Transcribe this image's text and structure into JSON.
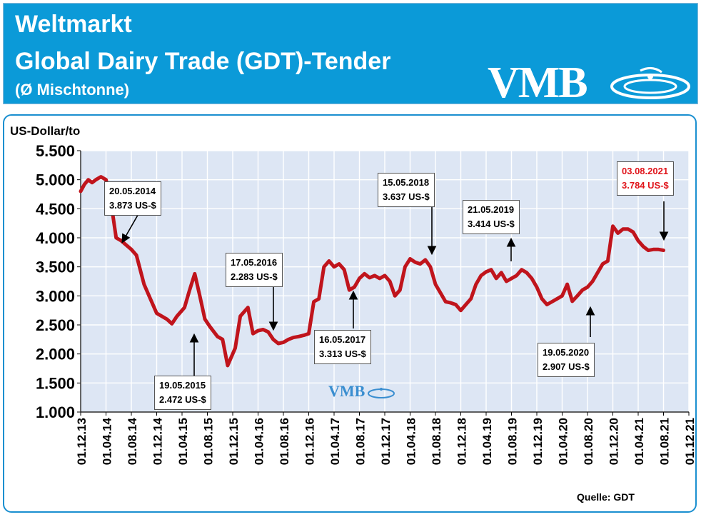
{
  "header": {
    "line1": "Weltmarkt",
    "line2": "Global Dairy Trade (GDT)-Tender",
    "line3": "(Ø Mischtonne)",
    "logo_text": "VMB",
    "bg_color": "#0b9ad8"
  },
  "chart_data": {
    "type": "line",
    "ylabel": "US-Dollar/to",
    "source": "Quelle: GDT",
    "watermark": "VMB",
    "line_color": "#c0141c",
    "plot_bg": "#dde6f4",
    "grid": true,
    "ylim": [
      1000,
      5500
    ],
    "yticks": [
      1000,
      1500,
      2000,
      2500,
      3000,
      3500,
      4000,
      4500,
      5000,
      5500
    ],
    "ytick_labels": [
      "1.000",
      "1.500",
      "2.000",
      "2.500",
      "3.000",
      "3.500",
      "4.000",
      "4.500",
      "5.000",
      "5.500"
    ],
    "xtick_labels": [
      "01.12.13",
      "01.04.14",
      "01.08.14",
      "01.12.14",
      "01.04.15",
      "01.08.15",
      "01.12.15",
      "01.04.16",
      "01.08.16",
      "01.12.16",
      "01.04.17",
      "01.08.17",
      "01.12.17",
      "01.04.18",
      "01.08.18",
      "01.12.18",
      "01.04.19",
      "01.08.19",
      "01.12.19",
      "01.04.20",
      "01.08.20",
      "01.12.20",
      "01.04.21",
      "01.08.21",
      "01.12.21"
    ],
    "series": [
      {
        "x": [
          0,
          0.15,
          0.3,
          0.45,
          0.6,
          0.8,
          1.0,
          1.2,
          1.4,
          1.6,
          1.8,
          2.0,
          2.2,
          2.5,
          2.8,
          3.0,
          3.2,
          3.4,
          3.6,
          3.8,
          4.0,
          4.1,
          4.3,
          4.5,
          4.7,
          4.9,
          5.1,
          5.4,
          5.6,
          5.8,
          6.1,
          6.3,
          6.6,
          6.8,
          7.0,
          7.2,
          7.4,
          7.6,
          7.8,
          8.0,
          8.2,
          8.4,
          8.6,
          8.8,
          9.0,
          9.2,
          9.4,
          9.6,
          9.8,
          10.0,
          10.2,
          10.4,
          10.6,
          10.8,
          11.0,
          11.2,
          11.4,
          11.6,
          11.8,
          12.0,
          12.2,
          12.4,
          12.6,
          12.8,
          13.0,
          13.2,
          13.4,
          13.6,
          13.8,
          14.0,
          14.2,
          14.4,
          14.6,
          14.8,
          15.0,
          15.2,
          15.4,
          15.6,
          15.8,
          16.0,
          16.2,
          16.4,
          16.6,
          16.8,
          17.0,
          17.2,
          17.4,
          17.6,
          17.8,
          18.0,
          18.2,
          18.4,
          18.6,
          18.8,
          19.0,
          19.2,
          19.4,
          19.6,
          19.8,
          20.0,
          20.2,
          20.4,
          20.6,
          20.8,
          21.0,
          21.2,
          21.4,
          21.6,
          21.8,
          22.0,
          22.2,
          22.4,
          22.6,
          22.8,
          23.0
        ],
        "values": [
          4800,
          4920,
          5000,
          4950,
          5000,
          5050,
          5000,
          4600,
          4000,
          3950,
          3873,
          3800,
          3700,
          3200,
          2900,
          2700,
          2650,
          2600,
          2520,
          2650,
          2750,
          2800,
          3100,
          3380,
          3000,
          2600,
          2472,
          2300,
          2250,
          1800,
          2100,
          2650,
          2800,
          2350,
          2400,
          2420,
          2380,
          2250,
          2180,
          2200,
          2250,
          2283,
          2300,
          2320,
          2350,
          2900,
          2950,
          3500,
          3600,
          3500,
          3550,
          3450,
          3100,
          3150,
          3300,
          3380,
          3313,
          3350,
          3300,
          3350,
          3250,
          3000,
          3100,
          3500,
          3637,
          3580,
          3550,
          3620,
          3500,
          3200,
          3050,
          2900,
          2880,
          2850,
          2750,
          2850,
          2950,
          3200,
          3350,
          3414,
          3450,
          3300,
          3400,
          3250,
          3300,
          3350,
          3450,
          3400,
          3300,
          3150,
          2950,
          2850,
          2900,
          2950,
          3000,
          3200,
          2907,
          3000,
          3100,
          3150,
          3250,
          3400,
          3550,
          3600,
          4200,
          4080,
          4150,
          4150,
          4100,
          3950,
          3850,
          3784,
          3800,
          3800,
          3784
        ]
      }
    ]
  },
  "callouts": [
    {
      "date": "20.05.2014",
      "value": "3.873 US-$",
      "red": false
    },
    {
      "date": "19.05.2015",
      "value": "2.472 US-$",
      "red": false
    },
    {
      "date": "17.05.2016",
      "value": "2.283 US-$",
      "red": false
    },
    {
      "date": "16.05.2017",
      "value": "3.313 US-$",
      "red": false
    },
    {
      "date": "15.05.2018",
      "value": "3.637 US-$",
      "red": false
    },
    {
      "date": "21.05.2019",
      "value": "3.414 US-$",
      "red": false
    },
    {
      "date": "19.05.2020",
      "value": "2.907 US-$",
      "red": false
    },
    {
      "date": "03.08.2021",
      "value": "3.784 US-$",
      "red": true
    }
  ]
}
